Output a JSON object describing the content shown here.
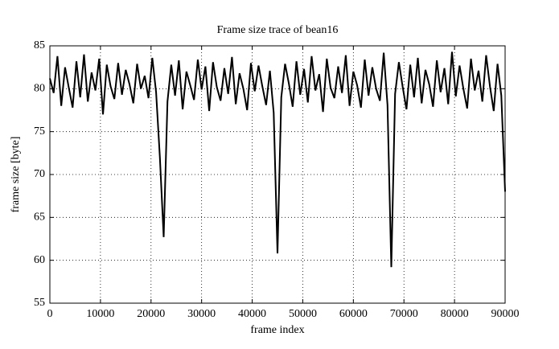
{
  "chart_data": {
    "type": "line",
    "title": "Frame size trace of bean16",
    "xlabel": "frame index",
    "ylabel": "frame size [byte]",
    "x": [
      0,
      750,
      1500,
      2250,
      3000,
      3750,
      4500,
      5250,
      6000,
      6750,
      7500,
      8250,
      9000,
      9750,
      10500,
      11250,
      12000,
      12750,
      13500,
      14250,
      15000,
      15750,
      16500,
      17250,
      18000,
      18750,
      19500,
      20250,
      21000,
      21750,
      22500,
      23250,
      24000,
      24750,
      25500,
      26250,
      27000,
      27750,
      28500,
      29250,
      30000,
      30750,
      31500,
      32250,
      33000,
      33750,
      34500,
      35250,
      36000,
      36750,
      37500,
      38250,
      39000,
      39750,
      40500,
      41250,
      42000,
      42750,
      43500,
      44250,
      45000,
      45750,
      46500,
      47250,
      48000,
      48750,
      49500,
      50250,
      51000,
      51750,
      52500,
      53250,
      54000,
      54750,
      55500,
      56250,
      57000,
      57750,
      58500,
      59250,
      60000,
      60750,
      61500,
      62250,
      63000,
      63750,
      64500,
      65250,
      66000,
      66750,
      67500,
      68250,
      69000,
      69750,
      70500,
      71250,
      72000,
      72750,
      73500,
      74250,
      75000,
      75750,
      76500,
      77250,
      78000,
      78750,
      79500,
      80250,
      81000,
      81750,
      82500,
      83250,
      84000,
      84750,
      85500,
      86250,
      87000,
      87750,
      88500,
      89250,
      90000
    ],
    "series": [
      {
        "name": "bean16",
        "color": "#000000",
        "values": [
          81.2,
          79.5,
          83.8,
          78.0,
          82.5,
          80.1,
          77.8,
          83.2,
          79.0,
          84.0,
          78.5,
          81.9,
          79.8,
          83.5,
          77.0,
          82.8,
          80.3,
          78.8,
          83.0,
          79.3,
          82.2,
          80.5,
          78.3,
          82.9,
          80.0,
          81.5,
          78.9,
          83.6,
          79.6,
          72.0,
          62.7,
          78.5,
          82.8,
          79.2,
          83.3,
          77.6,
          82.0,
          80.4,
          78.7,
          83.4,
          79.9,
          82.6,
          77.4,
          83.1,
          80.2,
          78.6,
          82.4,
          79.4,
          83.7,
          78.2,
          81.8,
          80.0,
          77.5,
          83.0,
          79.7,
          82.7,
          80.3,
          78.1,
          82.1,
          77.2,
          60.8,
          79.0,
          82.9,
          80.6,
          77.9,
          83.2,
          79.3,
          82.3,
          78.4,
          83.8,
          79.8,
          81.7,
          77.3,
          83.5,
          80.1,
          78.9,
          82.6,
          79.5,
          83.9,
          78.0,
          82.0,
          80.4,
          77.8,
          83.4,
          79.2,
          82.5,
          80.0,
          78.6,
          84.2,
          78.1,
          59.2,
          79.4,
          83.1,
          80.2,
          77.6,
          82.8,
          79.0,
          83.6,
          78.3,
          82.2,
          80.5,
          77.9,
          83.3,
          79.6,
          82.4,
          78.2,
          84.3,
          79.1,
          82.7,
          80.0,
          77.7,
          83.5,
          79.8,
          82.1,
          78.5,
          83.9,
          80.3,
          77.4,
          82.9,
          79.2,
          68.0
        ]
      }
    ],
    "xlim": [
      0,
      90000
    ],
    "ylim": [
      55,
      85
    ],
    "xticks": [
      0,
      10000,
      20000,
      30000,
      40000,
      50000,
      60000,
      70000,
      80000,
      90000
    ],
    "yticks": [
      55,
      60,
      65,
      70,
      75,
      80,
      85
    ],
    "grid": true
  }
}
